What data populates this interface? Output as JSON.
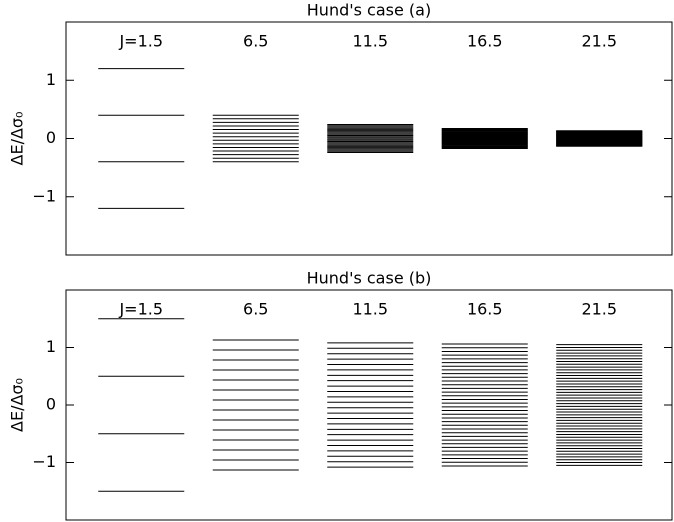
{
  "chart_data": [
    {
      "type": "levels",
      "title": "Hund's case (a)",
      "ylabel": "ΔE/Δσ₀",
      "categories": [
        "J=1.5",
        "6.5",
        "11.5",
        "16.5",
        "21.5"
      ],
      "levels": [
        [
          1.2,
          0.4,
          -0.4,
          -1.2
        ],
        [
          0.4,
          0.338,
          0.277,
          0.215,
          0.154,
          0.092,
          0.031,
          -0.031,
          -0.092,
          -0.154,
          -0.215,
          -0.277,
          -0.338,
          -0.4
        ],
        [
          0.24,
          0.219,
          0.198,
          0.177,
          0.157,
          0.136,
          0.115,
          0.094,
          0.073,
          0.052,
          0.031,
          0.01,
          -0.01,
          -0.031,
          -0.052,
          -0.073,
          -0.094,
          -0.115,
          -0.136,
          -0.157,
          -0.177,
          -0.198,
          -0.219,
          -0.24
        ],
        [
          0.171,
          0.161,
          0.151,
          0.14,
          0.13,
          0.119,
          0.109,
          0.099,
          0.088,
          0.078,
          0.068,
          0.057,
          0.047,
          0.036,
          0.026,
          0.016,
          0.005,
          -0.005,
          -0.016,
          -0.026,
          -0.036,
          -0.047,
          -0.057,
          -0.068,
          -0.078,
          -0.088,
          -0.099,
          -0.109,
          -0.119,
          -0.13,
          -0.14,
          -0.151,
          -0.161,
          -0.171
        ],
        [
          0.133,
          0.127,
          0.121,
          0.115,
          0.109,
          0.102,
          0.096,
          0.09,
          0.084,
          0.078,
          0.071,
          0.065,
          0.059,
          0.053,
          0.047,
          0.04,
          0.034,
          0.028,
          0.022,
          0.016,
          0.009,
          0.003,
          -0.003,
          -0.009,
          -0.016,
          -0.022,
          -0.028,
          -0.034,
          -0.04,
          -0.047,
          -0.053,
          -0.059,
          -0.065,
          -0.071,
          -0.078,
          -0.084,
          -0.09,
          -0.096,
          -0.102,
          -0.109,
          -0.115,
          -0.121,
          -0.127,
          -0.133
        ]
      ],
      "color": "#000000",
      "ylim": [
        -2,
        2
      ],
      "yticks": [
        {
          "value": -1,
          "label": "−1"
        },
        0,
        1
      ]
    },
    {
      "type": "levels",
      "title": "Hund's case (b)",
      "ylabel": "ΔE/Δσ₀",
      "categories": [
        "J=1.5",
        "6.5",
        "11.5",
        "16.5",
        "21.5"
      ],
      "levels": [
        [
          1.5,
          0.5,
          -0.5,
          -1.5
        ],
        [
          1.131,
          0.957,
          0.783,
          0.609,
          0.435,
          0.261,
          0.087,
          -0.087,
          -0.261,
          -0.435,
          -0.609,
          -0.783,
          -0.957,
          -1.131
        ],
        [
          1.08,
          0.986,
          0.892,
          0.798,
          0.704,
          0.61,
          0.516,
          0.423,
          0.329,
          0.235,
          0.141,
          0.047,
          -0.047,
          -0.141,
          -0.235,
          -0.329,
          -0.423,
          -0.516,
          -0.61,
          -0.704,
          -0.798,
          -0.892,
          -0.986,
          -1.08
        ],
        [
          1.06,
          0.995,
          0.931,
          0.867,
          0.803,
          0.738,
          0.674,
          0.61,
          0.546,
          0.482,
          0.417,
          0.353,
          0.289,
          0.225,
          0.161,
          0.096,
          0.032,
          -0.032,
          -0.096,
          -0.161,
          -0.225,
          -0.289,
          -0.353,
          -0.417,
          -0.482,
          -0.546,
          -0.61,
          -0.674,
          -0.738,
          -0.803,
          -0.867,
          -0.931,
          -0.995,
          -1.06
        ],
        [
          1.05,
          1.0,
          0.952,
          0.903,
          0.854,
          0.805,
          0.756,
          0.708,
          0.659,
          0.61,
          0.561,
          0.512,
          0.464,
          0.415,
          0.366,
          0.317,
          0.268,
          0.22,
          0.171,
          0.122,
          0.073,
          0.024,
          -0.024,
          -0.073,
          -0.122,
          -0.171,
          -0.22,
          -0.268,
          -0.317,
          -0.366,
          -0.415,
          -0.464,
          -0.512,
          -0.561,
          -0.61,
          -0.659,
          -0.708,
          -0.756,
          -0.805,
          -0.854,
          -0.903,
          -0.952,
          -1.0,
          -1.05
        ]
      ],
      "color": "#000000",
      "ylim": [
        -2,
        2
      ],
      "yticks": [
        {
          "value": -1,
          "label": "−1"
        },
        0,
        1
      ]
    }
  ]
}
